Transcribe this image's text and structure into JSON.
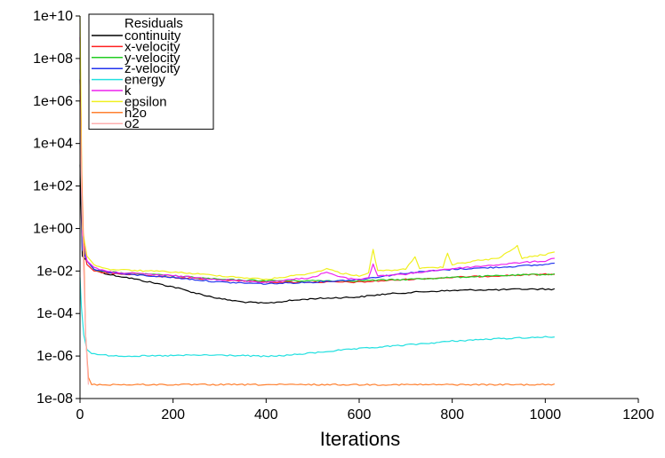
{
  "chart_data": {
    "type": "line",
    "title": "",
    "xlabel": "Iterations",
    "ylabel": "",
    "xlim": [
      0,
      1200
    ],
    "x_ticks": [
      0,
      200,
      400,
      600,
      800,
      1000,
      1200
    ],
    "yscale": "log",
    "ylim": [
      1e-08,
      10000000000.0
    ],
    "y_ticks": [
      "1e-08",
      "1e-06",
      "1e-04",
      "1e-02",
      "1e+00",
      "1e+02",
      "1e+04",
      "1e+06",
      "1e+08",
      "1e+10"
    ],
    "grid": false,
    "legend": {
      "title": "Residuals",
      "position": "top-left"
    },
    "series": [
      {
        "name": "continuity",
        "color": "#000000",
        "x": [
          0,
          5,
          15,
          30,
          60,
          100,
          150,
          200,
          250,
          300,
          350,
          400,
          450,
          500,
          550,
          600,
          650,
          700,
          750,
          800,
          850,
          900,
          950,
          1000,
          1020
        ],
        "y": [
          1000.0,
          0.05,
          0.03,
          0.012,
          0.007,
          0.005,
          0.003,
          0.0018,
          0.0009,
          0.0005,
          0.00035,
          0.0003,
          0.0004,
          0.0005,
          0.00055,
          0.0006,
          0.0008,
          0.00095,
          0.0011,
          0.0012,
          0.0013,
          0.0013,
          0.0014,
          0.0014,
          0.0014
        ]
      },
      {
        "name": "x-velocity",
        "color": "#ff2020",
        "x": [
          0,
          5,
          15,
          30,
          60,
          100,
          200,
          300,
          400,
          500,
          600,
          700,
          800,
          900,
          1000,
          1020
        ],
        "y": [
          100000000.0,
          0.3,
          0.02,
          0.01,
          0.008,
          0.007,
          0.005,
          0.004,
          0.003,
          0.003,
          0.003,
          0.004,
          0.005,
          0.006,
          0.007,
          0.007
        ]
      },
      {
        "name": "y-velocity",
        "color": "#22cc22",
        "x": [
          0,
          5,
          15,
          30,
          60,
          100,
          200,
          300,
          400,
          500,
          600,
          700,
          800,
          900,
          1000,
          1020
        ],
        "y": [
          1000000.0,
          0.2,
          0.03,
          0.012,
          0.009,
          0.008,
          0.006,
          0.004,
          0.0035,
          0.0035,
          0.0035,
          0.004,
          0.005,
          0.006,
          0.007,
          0.007
        ]
      },
      {
        "name": "z-velocity",
        "color": "#2233ee",
        "x": [
          0,
          5,
          15,
          30,
          60,
          100,
          200,
          300,
          400,
          500,
          600,
          700,
          800,
          900,
          1000,
          1020
        ],
        "y": [
          10000000.0,
          0.1,
          0.03,
          0.012,
          0.009,
          0.007,
          0.005,
          0.003,
          0.0025,
          0.003,
          0.004,
          0.008,
          0.012,
          0.015,
          0.02,
          0.025
        ]
      },
      {
        "name": "energy",
        "color": "#22e0e0",
        "x": [
          0,
          3,
          8,
          15,
          25,
          50,
          100,
          150,
          200,
          250,
          300,
          350,
          400,
          450,
          500,
          550,
          600,
          650,
          700,
          750,
          800,
          850,
          900,
          950,
          1000,
          1020
        ],
        "y": [
          0.005,
          0.0002,
          1e-05,
          2e-06,
          1.3e-06,
          1.1e-06,
          1e-06,
          1e-06,
          1.05e-06,
          1.1e-06,
          1.1e-06,
          1.05e-06,
          9.5e-07,
          1.1e-06,
          1.4e-06,
          1.8e-06,
          2.2e-06,
          2.7e-06,
          3.3e-06,
          4e-06,
          5e-06,
          5.8e-06,
          6.5e-06,
          7.2e-06,
          7.8e-06,
          8e-06
        ]
      },
      {
        "name": "k",
        "color": "#ee22ee",
        "x": [
          0,
          5,
          15,
          30,
          60,
          100,
          200,
          300,
          400,
          500,
          530,
          560,
          600,
          620,
          630,
          640,
          700,
          750,
          800,
          850,
          900,
          950,
          1000,
          1020
        ],
        "y": [
          1000000000.0,
          0.5,
          0.03,
          0.015,
          0.009,
          0.008,
          0.006,
          0.004,
          0.003,
          0.005,
          0.009,
          0.005,
          0.004,
          0.005,
          0.02,
          0.006,
          0.007,
          0.01,
          0.013,
          0.016,
          0.02,
          0.025,
          0.03,
          0.04
        ]
      },
      {
        "name": "epsilon",
        "color": "#f0f020",
        "x": [
          0,
          5,
          15,
          30,
          60,
          100,
          200,
          300,
          400,
          500,
          530,
          560,
          600,
          620,
          630,
          640,
          700,
          720,
          730,
          780,
          790,
          800,
          850,
          900,
          940,
          950,
          1000,
          1020
        ],
        "y": [
          10000000000.0,
          1,
          0.05,
          0.02,
          0.012,
          0.011,
          0.009,
          0.006,
          0.004,
          0.008,
          0.013,
          0.008,
          0.006,
          0.008,
          0.1,
          0.01,
          0.012,
          0.05,
          0.013,
          0.015,
          0.07,
          0.02,
          0.03,
          0.04,
          0.15,
          0.04,
          0.06,
          0.08
        ]
      },
      {
        "name": "h2o",
        "color": "#ff8030",
        "x": [
          0,
          3,
          8,
          12,
          18,
          25,
          100,
          200,
          400,
          600,
          800,
          1000,
          1020
        ],
        "y": [
          10000000.0,
          1000.0,
          0.1,
          1e-05,
          1e-07,
          4.5e-08,
          4.5e-08,
          4.5e-08,
          4.5e-08,
          4.5e-08,
          4.5e-08,
          4.5e-08,
          4.5e-08
        ]
      },
      {
        "name": "o2",
        "color": "#ffb0b0",
        "x": [
          0,
          3,
          8,
          12,
          18
        ],
        "y": [
          1000000.0,
          100,
          0.01,
          1e-05,
          4.5e-08
        ]
      }
    ]
  }
}
